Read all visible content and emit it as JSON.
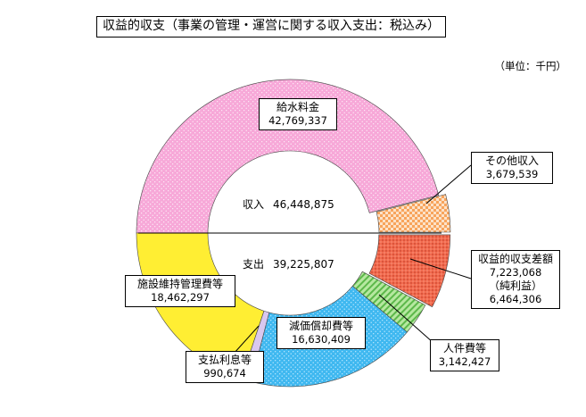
{
  "title": "収益的収支（事業の管理・運営に関する収入支出：税込み）",
  "unit": "（単位：千円）",
  "chart_data": {
    "type": "pie",
    "subtype": "split-donut",
    "unit": "千円",
    "income": {
      "label": "収入",
      "total": "46,448,875",
      "slices": [
        {
          "name": "給水料金",
          "value": 42769337,
          "value_label": "42,769,337",
          "color": "#f7a8d8",
          "pattern": "dots"
        },
        {
          "name": "その他収入",
          "value": 3679539,
          "value_label": "3,679,539",
          "color": "#f7b27a",
          "pattern": "checker"
        }
      ]
    },
    "expense": {
      "label": "支出",
      "total": "39,225,807",
      "slices": [
        {
          "name": "収益的収支差額",
          "value": 7223068,
          "value_label": "7,223,068",
          "sub_label": "（純利益）",
          "sub_value": "6,464,306",
          "color": "#f26b4f",
          "pattern": "dots"
        },
        {
          "name": "人件費等",
          "value": 3142427,
          "value_label": "3,142,427",
          "color": "#a6e08a",
          "pattern": "diagonal"
        },
        {
          "name": "減価償却費等",
          "value": 16630409,
          "value_label": "16,630,409",
          "color": "#3fb8f0",
          "pattern": "dots"
        },
        {
          "name": "支払利息等",
          "value": 990674,
          "value_label": "990,674",
          "color": "#d9c8ef",
          "pattern": "solid"
        },
        {
          "name": "施設維持管理費等",
          "value": 18462297,
          "value_label": "18,462,297",
          "color": "#ffee33",
          "pattern": "solid"
        }
      ]
    }
  }
}
